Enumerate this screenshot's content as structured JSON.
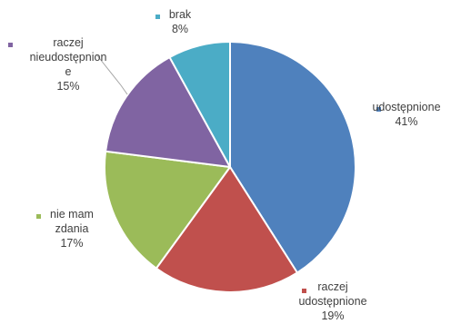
{
  "chart_data": {
    "type": "pie",
    "title": "",
    "slices": [
      {
        "label_lines": [
          "udostępnione"
        ],
        "pct_text": "41%",
        "value": 41,
        "color": "#4f81bd"
      },
      {
        "label_lines": [
          "raczej",
          "udostępnione"
        ],
        "pct_text": "19%",
        "value": 19,
        "color": "#c0504d"
      },
      {
        "label_lines": [
          "nie mam",
          "zdania"
        ],
        "pct_text": "17%",
        "value": 17,
        "color": "#9bbb59"
      },
      {
        "label_lines": [
          "raczej",
          "nieudostępnion",
          "e"
        ],
        "pct_text": "15%",
        "value": 15,
        "color": "#8064a2"
      },
      {
        "label_lines": [
          "brak"
        ],
        "pct_text": "8%",
        "value": 8,
        "color": "#4bacc6"
      }
    ],
    "legend": "data labels with category name and percentage around the pie"
  }
}
